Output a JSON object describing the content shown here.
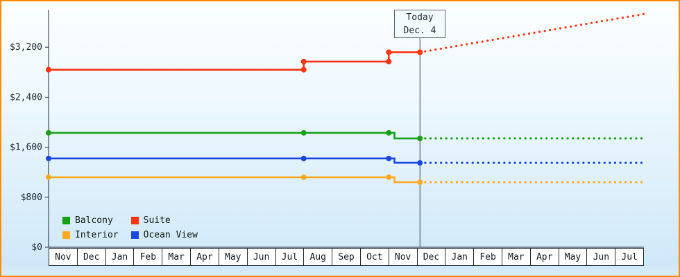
{
  "colors": {
    "frame_border": "#ff8c00",
    "axis": "#1d2733",
    "today_line": "#3c4650"
  },
  "legend": {
    "items": [
      {
        "label": "Balcony",
        "color": "#16a016"
      },
      {
        "label": "Suite",
        "color": "#ff3310"
      },
      {
        "label": "Interior",
        "color": "#ffaa22"
      },
      {
        "label": "Ocean View",
        "color": "#1b46e0"
      }
    ]
  },
  "chart_data": {
    "type": "line",
    "title": "",
    "x_axis": {
      "months": [
        "Nov",
        "Dec",
        "Jan",
        "Feb",
        "Mar",
        "Apr",
        "May",
        "Jun",
        "Jul",
        "Aug",
        "Sep",
        "Oct",
        "Nov",
        "Dec",
        "Jan",
        "Feb",
        "Mar",
        "Apr",
        "May",
        "Jun",
        "Jul"
      ]
    },
    "y_axis": {
      "ticks": [
        {
          "label": "$0",
          "value": 0
        },
        {
          "label": "$800",
          "value": 800
        },
        {
          "label": "$1,600",
          "value": 1600
        },
        {
          "label": "$2,400",
          "value": 2400
        },
        {
          "label": "$3,200",
          "value": 3200
        }
      ],
      "plot_max": 3800
    },
    "today": {
      "title": "Today",
      "date": "Dec. 4",
      "x": 13.1
    },
    "series": [
      {
        "name": "Interior",
        "color": "#ffaa22",
        "history": [
          [
            0,
            1120
          ],
          [
            12.2,
            1120
          ],
          [
            12.2,
            1040
          ],
          [
            13.1,
            1040
          ]
        ],
        "forecast": [
          [
            13.1,
            1040
          ],
          [
            21,
            1040
          ]
        ],
        "markers": [
          [
            0,
            1120
          ],
          [
            9,
            1120
          ],
          [
            12,
            1120
          ],
          [
            13.1,
            1040
          ]
        ]
      },
      {
        "name": "Ocean View",
        "color": "#1b46e0",
        "history": [
          [
            0,
            1420
          ],
          [
            12.2,
            1420
          ],
          [
            12.2,
            1350
          ],
          [
            13.1,
            1350
          ]
        ],
        "forecast": [
          [
            13.1,
            1350
          ],
          [
            21,
            1350
          ]
        ],
        "markers": [
          [
            0,
            1420
          ],
          [
            9,
            1420
          ],
          [
            12,
            1420
          ],
          [
            13.1,
            1350
          ]
        ]
      },
      {
        "name": "Balcony",
        "color": "#16a016",
        "history": [
          [
            0,
            1830
          ],
          [
            12.2,
            1830
          ],
          [
            12.2,
            1740
          ],
          [
            13.1,
            1740
          ]
        ],
        "forecast": [
          [
            13.1,
            1740
          ],
          [
            21,
            1740
          ]
        ],
        "markers": [
          [
            0,
            1830
          ],
          [
            9,
            1830
          ],
          [
            12,
            1830
          ],
          [
            13.1,
            1740
          ]
        ]
      },
      {
        "name": "Suite",
        "color": "#ff3310",
        "history": [
          [
            0,
            2840
          ],
          [
            9,
            2840
          ],
          [
            9,
            2970
          ],
          [
            12,
            2970
          ],
          [
            12,
            3120
          ],
          [
            13.1,
            3120
          ]
        ],
        "forecast": [
          [
            13.1,
            3120
          ],
          [
            21,
            3730
          ]
        ],
        "markers": [
          [
            0,
            2840
          ],
          [
            9,
            2840
          ],
          [
            9,
            2970
          ],
          [
            12,
            2970
          ],
          [
            12,
            3120
          ],
          [
            13.1,
            3120
          ]
        ]
      }
    ]
  }
}
